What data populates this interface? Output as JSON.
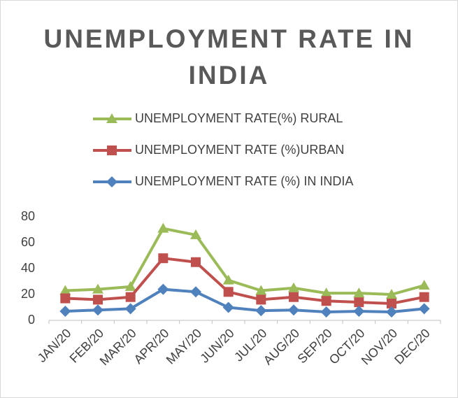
{
  "chart_data": {
    "type": "line",
    "title": "UNEMPLOYMENT RATE IN INDIA",
    "categories": [
      "JAN/20",
      "FEB/20",
      "MAR/20",
      "APR/20",
      "MAY/20",
      "JUN/20",
      "JUL/20",
      "AUG/20",
      "SEP/20",
      "OCT/20",
      "NOV/20",
      "DEC/20"
    ],
    "series": [
      {
        "name": "UNEMPLOYMENT RATE(%) RURAL",
        "color": "#9bbb59",
        "marker": "triangle",
        "values": [
          23,
          24,
          26,
          71,
          66,
          31,
          23,
          25,
          21,
          21,
          20,
          27
        ]
      },
      {
        "name": "UNEMPLOYMENT RATE (%)URBAN",
        "color": "#c0504d",
        "marker": "square",
        "values": [
          17,
          16,
          18,
          48,
          45,
          22,
          16,
          18,
          15,
          14,
          13,
          18
        ]
      },
      {
        "name": "UNEMPLOYMENT RATE (%) IN INDIA",
        "color": "#4f81bd",
        "marker": "diamond",
        "values": [
          7,
          8,
          9,
          24,
          22,
          10,
          7.5,
          8,
          6.5,
          7,
          6.5,
          9
        ]
      }
    ],
    "ylim": [
      0,
      80
    ],
    "yticks": [
      0,
      20,
      40,
      60,
      80
    ],
    "grid": false
  }
}
